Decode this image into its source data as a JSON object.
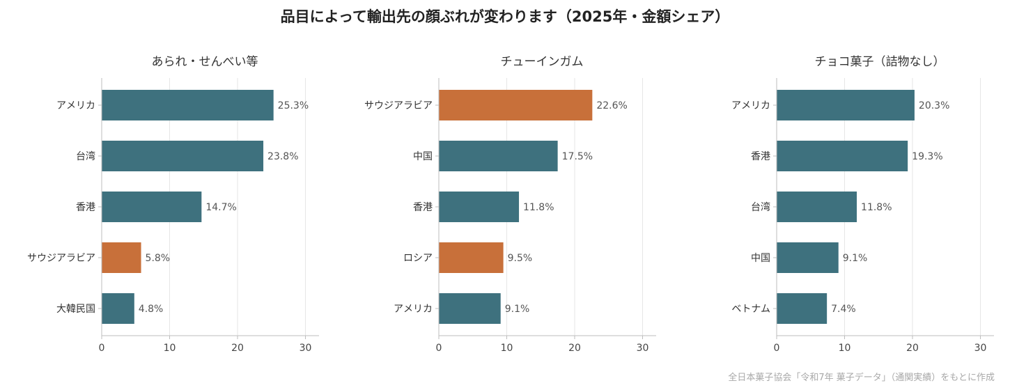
{
  "title": "品目によって輸出先の顔ぶれが変わります（2025年・金額シェア）",
  "source": "全日本菓子協会「令和7年 菓子データ」（通関実績）をもとに作成",
  "colors": {
    "default": "#3e717e",
    "highlight": "#c8703a",
    "grid": "#e6e6e6",
    "axis": "#bdbdbd"
  },
  "chart_data": [
    {
      "type": "bar",
      "orientation": "horizontal",
      "title": "あられ・せんべい等",
      "categories": [
        "アメリカ",
        "台湾",
        "香港",
        "サウジアラビア",
        "大韓民国"
      ],
      "values": [
        25.3,
        23.8,
        14.7,
        5.8,
        4.8
      ],
      "value_labels": [
        "25.3%",
        "23.8%",
        "14.7%",
        "5.8%",
        "4.8%"
      ],
      "highlighted": [
        false,
        false,
        false,
        true,
        false
      ],
      "xlim": [
        0,
        32
      ],
      "xticks": [
        0,
        10,
        20,
        30
      ],
      "grid": true
    },
    {
      "type": "bar",
      "orientation": "horizontal",
      "title": "チューインガム",
      "categories": [
        "サウジアラビア",
        "中国",
        "香港",
        "ロシア",
        "アメリカ"
      ],
      "values": [
        22.6,
        17.5,
        11.8,
        9.5,
        9.1
      ],
      "value_labels": [
        "22.6%",
        "17.5%",
        "11.8%",
        "9.5%",
        "9.1%"
      ],
      "highlighted": [
        true,
        false,
        false,
        true,
        false
      ],
      "xlim": [
        0,
        32
      ],
      "xticks": [
        0,
        10,
        20,
        30
      ],
      "grid": true
    },
    {
      "type": "bar",
      "orientation": "horizontal",
      "title": "チョコ菓子（詰物なし）",
      "categories": [
        "アメリカ",
        "香港",
        "台湾",
        "中国",
        "ベトナム"
      ],
      "values": [
        20.3,
        19.3,
        11.8,
        9.1,
        7.4
      ],
      "value_labels": [
        "20.3%",
        "19.3%",
        "11.8%",
        "9.1%",
        "7.4%"
      ],
      "highlighted": [
        false,
        false,
        false,
        false,
        false
      ],
      "xlim": [
        0,
        32
      ],
      "xticks": [
        0,
        10,
        20,
        30
      ],
      "grid": true
    }
  ]
}
